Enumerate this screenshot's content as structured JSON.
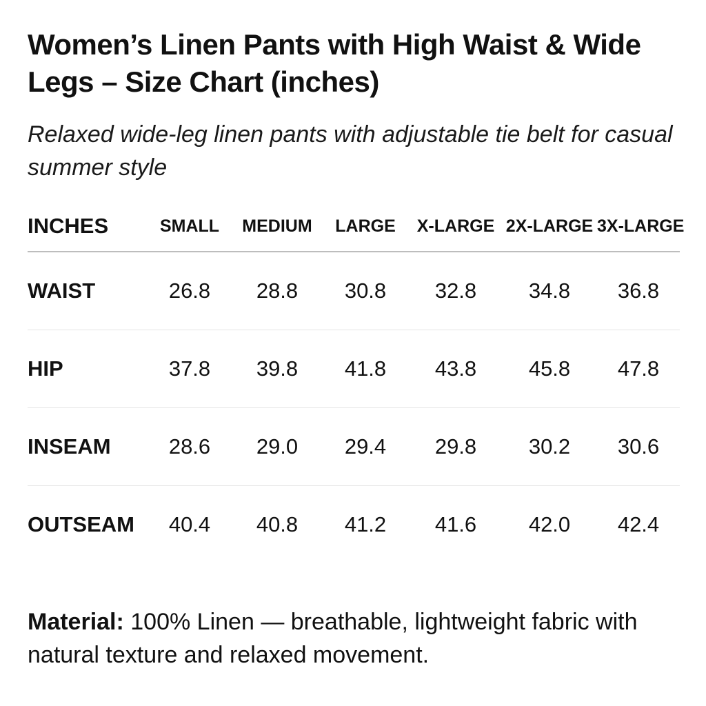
{
  "title": "Women’s Linen Pants with High Waist & Wide Legs – Size Chart (inches)",
  "subtitle": "Relaxed wide-leg linen pants with adjustable tie belt for casual summer style",
  "table": {
    "corner_label": "INCHES",
    "columns": [
      "SMALL",
      "MEDIUM",
      "LARGE",
      "X-LARGE",
      "2X-LARGE",
      "3X-LARGE"
    ],
    "rows": [
      {
        "label": "WAIST",
        "values": [
          "26.8",
          "28.8",
          "30.8",
          "32.8",
          "34.8",
          "36.8"
        ]
      },
      {
        "label": "HIP",
        "values": [
          "37.8",
          "39.8",
          "41.8",
          "43.8",
          "45.8",
          "47.8"
        ]
      },
      {
        "label": "INSEAM",
        "values": [
          "28.6",
          "29.0",
          "29.4",
          "29.8",
          "30.2",
          "30.6"
        ]
      },
      {
        "label": "OUTSEAM",
        "values": [
          "40.4",
          "40.8",
          "41.2",
          "41.6",
          "42.0",
          "42.4"
        ]
      }
    ]
  },
  "material": {
    "label": "Material:",
    "text": " 100% Linen — breathable, lightweight fabric with natural texture and relaxed movement."
  }
}
